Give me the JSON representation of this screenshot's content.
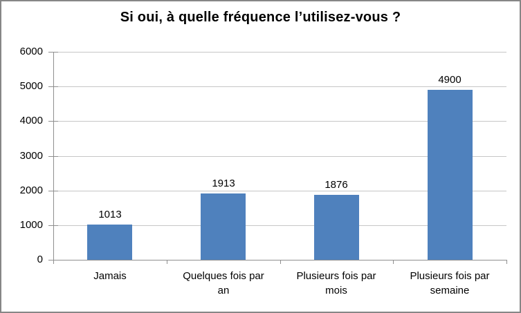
{
  "chart_data": {
    "type": "bar",
    "title": "Si oui, à quelle fréquence l’utilisez-vous ?",
    "categories": [
      "Jamais",
      "Quelques fois par an",
      "Plusieurs fois par mois",
      "Plusieurs fois par semaine"
    ],
    "values": [
      1013,
      1913,
      1876,
      4900
    ],
    "data_labels": [
      "1013",
      "1913",
      "1876",
      "4900"
    ],
    "xlabel": "",
    "ylabel": "",
    "ylim": [
      0,
      6000
    ],
    "yticks": [
      0,
      1000,
      2000,
      3000,
      4000,
      5000,
      6000
    ],
    "grid": true,
    "legend": "none",
    "colors": {
      "bar": "#4F81BD",
      "gridline": "#C6C6C6",
      "axis": "#8E8E8E",
      "chart_border": "#868686",
      "background": "#FFFFFF",
      "text": "#000000"
    }
  }
}
